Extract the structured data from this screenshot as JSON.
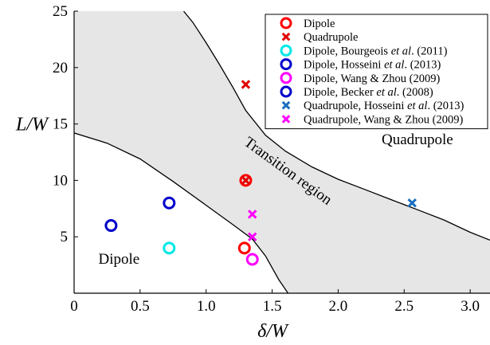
{
  "chart_data": {
    "type": "scatter",
    "xlabel": "δ/W",
    "ylabel": "L/W",
    "xlim": [
      0,
      3.15
    ],
    "ylim": [
      0,
      25
    ],
    "x_ticks": [
      "0",
      "0.5",
      "1.0",
      "1.5",
      "2.0",
      "2.5",
      "3.0"
    ],
    "x_tick_values": [
      0,
      0.5,
      1.0,
      1.5,
      2.0,
      2.5,
      3.0
    ],
    "y_ticks": [
      "5",
      "10",
      "15",
      "20",
      "25"
    ],
    "y_tick_values": [
      5,
      10,
      15,
      20,
      25
    ],
    "legend_position": "top-right",
    "region_labels": [
      {
        "text": "Dipole",
        "x": 0.34,
        "y": 2.6,
        "rotation": 0
      },
      {
        "text": "Quadrupole",
        "x": 2.6,
        "y": 13.2,
        "rotation": 0
      },
      {
        "text": "Transition region",
        "x": 1.6,
        "y": 10.5,
        "rotation": 36
      }
    ],
    "boundaries": [
      {
        "name": "lower boundary",
        "points": [
          [
            0,
            14.2
          ],
          [
            0.25,
            13.3
          ],
          [
            0.5,
            11.9
          ],
          [
            0.75,
            9.9
          ],
          [
            1.0,
            7.8
          ],
          [
            1.2,
            6.1
          ],
          [
            1.35,
            4.8
          ],
          [
            1.45,
            3.3
          ],
          [
            1.55,
            1.2
          ],
          [
            1.62,
            0
          ]
        ]
      },
      {
        "name": "upper boundary",
        "points": [
          [
            0.83,
            25
          ],
          [
            0.9,
            24.0
          ],
          [
            1.0,
            22.2
          ],
          [
            1.1,
            20.3
          ],
          [
            1.2,
            18.3
          ],
          [
            1.3,
            16.2
          ],
          [
            1.45,
            14.0
          ],
          [
            1.6,
            12.6
          ],
          [
            1.8,
            11.2
          ],
          [
            2.0,
            10.1
          ],
          [
            2.2,
            9.2
          ],
          [
            2.4,
            8.3
          ],
          [
            2.6,
            7.4
          ],
          [
            2.8,
            6.5
          ],
          [
            3.0,
            5.4
          ],
          [
            3.15,
            4.7
          ]
        ]
      }
    ],
    "series": [
      {
        "name": "Dipole",
        "marker": "circle",
        "color": "#ff0000",
        "points": [
          [
            1.29,
            4.0
          ],
          [
            1.3,
            10.0
          ]
        ]
      },
      {
        "name": "Quadrupole",
        "marker": "x",
        "color": "#e00000",
        "points": [
          [
            1.3,
            18.5
          ],
          [
            1.3,
            10.0
          ]
        ]
      },
      {
        "name": "Dipole, Bourgeois et al. (2011)",
        "marker": "circle",
        "color": "#00e8e8",
        "points": [
          [
            0.72,
            4.0
          ]
        ]
      },
      {
        "name": "Dipole, Hosseini et al. (2013)",
        "marker": "circle",
        "color": "#0000cc",
        "points": [
          [
            0.72,
            8.0
          ]
        ]
      },
      {
        "name": "Dipole, Wang & Zhou (2009)",
        "marker": "circle",
        "color": "#ff00ff",
        "points": [
          [
            1.35,
            3.0
          ]
        ]
      },
      {
        "name": "Dipole, Becker et al. (2008)",
        "marker": "circle",
        "color": "#0000cc",
        "points": [
          [
            0.28,
            6.0
          ]
        ]
      },
      {
        "name": "Quadrupole, Hosseini et al. (2013)",
        "marker": "x",
        "color": "#1a6fbf",
        "points": [
          [
            2.56,
            8.0
          ]
        ]
      },
      {
        "name": "Quadrupole, Wang & Zhou (2009)",
        "marker": "x",
        "color": "#ff00ff",
        "points": [
          [
            1.35,
            7.0
          ],
          [
            1.35,
            5.0
          ]
        ]
      }
    ],
    "legend": [
      {
        "marker": "circle",
        "color": "#ff0000",
        "parts": [
          {
            "t": "Dipole",
            "i": false
          }
        ]
      },
      {
        "marker": "x",
        "color": "#e00000",
        "parts": [
          {
            "t": "Quadrupole",
            "i": false
          }
        ]
      },
      {
        "marker": "circle",
        "color": "#00e8e8",
        "parts": [
          {
            "t": "Dipole, Bourgeois ",
            "i": false
          },
          {
            "t": "et al",
            "i": true
          },
          {
            "t": ". (2011)",
            "i": false
          }
        ]
      },
      {
        "marker": "circle",
        "color": "#0000cc",
        "parts": [
          {
            "t": "Dipole, Hosseini ",
            "i": false
          },
          {
            "t": "et al",
            "i": true
          },
          {
            "t": ". (2013)",
            "i": false
          }
        ]
      },
      {
        "marker": "circle",
        "color": "#ff00ff",
        "parts": [
          {
            "t": "Dipole, Wang & Zhou (2009)",
            "i": false
          }
        ]
      },
      {
        "marker": "circle",
        "color": "#0000cc",
        "parts": [
          {
            "t": "Dipole, Becker ",
            "i": false
          },
          {
            "t": "et al",
            "i": true
          },
          {
            "t": ". (2008)",
            "i": false
          }
        ]
      },
      {
        "marker": "x",
        "color": "#1a6fbf",
        "parts": [
          {
            "t": "Quadrupole, Hosseini ",
            "i": false
          },
          {
            "t": "et al",
            "i": true
          },
          {
            "t": ". (2013)",
            "i": false
          }
        ]
      },
      {
        "marker": "x",
        "color": "#ff00ff",
        "parts": [
          {
            "t": "Quadrupole, Wang & Zhou (2009)",
            "i": false
          }
        ]
      }
    ],
    "colors": {
      "region_fill": "#e6e6e6",
      "boundary": "#000000",
      "axis": "#000000"
    }
  }
}
